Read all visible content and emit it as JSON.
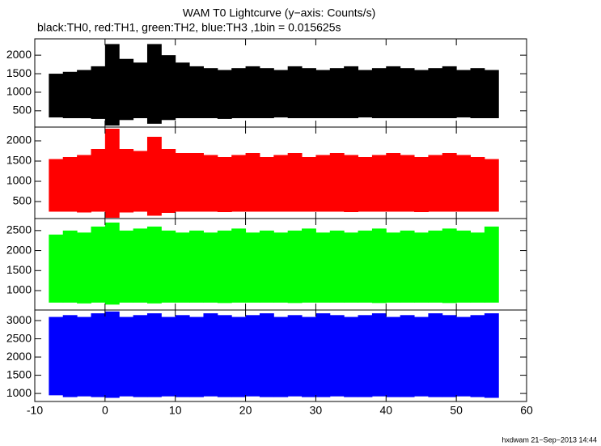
{
  "title": "WAM T0 Lightcurve (y−axis: Counts/s)",
  "subtitle": "black:TH0, red:TH1, green:TH2, blue:TH3 ,1bin = 0.015625s",
  "footer": "hxdwam 21−Sep−2013 14:44",
  "chart_data": [
    {
      "type": "range",
      "color": "#000000",
      "x": [
        -8,
        -6,
        -4,
        -2,
        0,
        2,
        4,
        6,
        8,
        10,
        12,
        14,
        16,
        18,
        20,
        22,
        24,
        26,
        28,
        30,
        32,
        34,
        36,
        38,
        40,
        42,
        44,
        46,
        48,
        50,
        52,
        54
      ],
      "low": [
        320,
        300,
        300,
        280,
        100,
        250,
        300,
        150,
        250,
        300,
        300,
        300,
        280,
        300,
        300,
        300,
        320,
        300,
        300,
        300,
        300,
        300,
        320,
        300,
        300,
        300,
        300,
        300,
        300,
        320,
        300,
        300
      ],
      "high": [
        1500,
        1550,
        1600,
        1700,
        2300,
        1900,
        1800,
        2300,
        2000,
        1800,
        1700,
        1650,
        1600,
        1650,
        1700,
        1650,
        1600,
        1700,
        1650,
        1600,
        1650,
        1700,
        1600,
        1650,
        1700,
        1650,
        1600,
        1650,
        1700,
        1600,
        1650,
        1600
      ],
      "xlim": [
        -10,
        60
      ],
      "xticks": [
        -10,
        0,
        10,
        20,
        30,
        40,
        50,
        60
      ],
      "ylim": [
        60,
        2440
      ],
      "yticks": [
        500,
        1000,
        1500,
        2000
      ]
    },
    {
      "type": "range",
      "color": "#ff0000",
      "x": [
        -8,
        -6,
        -4,
        -2,
        0,
        2,
        4,
        6,
        8,
        10,
        12,
        14,
        16,
        18,
        20,
        22,
        24,
        26,
        28,
        30,
        32,
        34,
        36,
        38,
        40,
        42,
        44,
        46,
        48,
        50,
        52,
        54
      ],
      "low": [
        250,
        250,
        230,
        250,
        100,
        230,
        250,
        150,
        220,
        250,
        250,
        250,
        240,
        250,
        250,
        250,
        250,
        250,
        250,
        250,
        250,
        240,
        250,
        250,
        250,
        250,
        240,
        250,
        250,
        250,
        250,
        250
      ],
      "high": [
        1550,
        1600,
        1650,
        1800,
        2300,
        1800,
        1750,
        2100,
        1800,
        1700,
        1700,
        1650,
        1600,
        1650,
        1700,
        1600,
        1650,
        1700,
        1600,
        1650,
        1700,
        1650,
        1600,
        1650,
        1700,
        1650,
        1600,
        1650,
        1700,
        1650,
        1600,
        1550
      ],
      "xlim": [
        -10,
        60
      ],
      "xticks": [
        -10,
        0,
        10,
        20,
        30,
        40,
        50,
        60
      ],
      "ylim": [
        80,
        2340
      ],
      "yticks": [
        500,
        1000,
        1500,
        2000
      ]
    },
    {
      "type": "range",
      "color": "#00ff00",
      "x": [
        -8,
        -6,
        -4,
        -2,
        0,
        2,
        4,
        6,
        8,
        10,
        12,
        14,
        16,
        18,
        20,
        22,
        24,
        26,
        28,
        30,
        32,
        34,
        36,
        38,
        40,
        42,
        44,
        46,
        48,
        50,
        52,
        54
      ],
      "low": [
        700,
        700,
        680,
        700,
        650,
        700,
        700,
        680,
        700,
        700,
        700,
        700,
        690,
        700,
        700,
        700,
        700,
        690,
        700,
        700,
        700,
        700,
        700,
        690,
        700,
        700,
        700,
        700,
        690,
        700,
        700,
        700
      ],
      "high": [
        2400,
        2500,
        2450,
        2600,
        2700,
        2500,
        2550,
        2600,
        2500,
        2450,
        2500,
        2450,
        2500,
        2550,
        2450,
        2500,
        2450,
        2500,
        2550,
        2450,
        2500,
        2450,
        2500,
        2550,
        2450,
        2500,
        2450,
        2500,
        2550,
        2500,
        2450,
        2600
      ],
      "xlim": [
        -10,
        60
      ],
      "xticks": [
        -10,
        0,
        10,
        20,
        30,
        40,
        50,
        60
      ],
      "ylim": [
        515,
        2800
      ],
      "yticks": [
        1000,
        1500,
        2000,
        2500
      ]
    },
    {
      "type": "range",
      "color": "#0000ff",
      "x": [
        -8,
        -6,
        -4,
        -2,
        0,
        2,
        4,
        6,
        8,
        10,
        12,
        14,
        16,
        18,
        20,
        22,
        24,
        26,
        28,
        30,
        32,
        34,
        36,
        38,
        40,
        42,
        44,
        46,
        48,
        50,
        52,
        54
      ],
      "low": [
        950,
        900,
        920,
        900,
        880,
        920,
        900,
        900,
        920,
        900,
        900,
        920,
        900,
        900,
        920,
        900,
        900,
        920,
        900,
        900,
        920,
        900,
        900,
        920,
        900,
        900,
        920,
        900,
        900,
        920,
        900,
        880
      ],
      "high": [
        3100,
        3150,
        3100,
        3200,
        3250,
        3100,
        3150,
        3200,
        3100,
        3150,
        3100,
        3200,
        3150,
        3100,
        3150,
        3200,
        3100,
        3150,
        3100,
        3200,
        3150,
        3100,
        3150,
        3200,
        3100,
        3150,
        3100,
        3200,
        3150,
        3100,
        3150,
        3200
      ],
      "xlim": [
        -10,
        60
      ],
      "xticks": [
        -10,
        0,
        10,
        20,
        30,
        40,
        50,
        60
      ],
      "ylim": [
        780,
        3290
      ],
      "yticks": [
        1000,
        1500,
        2000,
        2500,
        3000
      ]
    }
  ]
}
